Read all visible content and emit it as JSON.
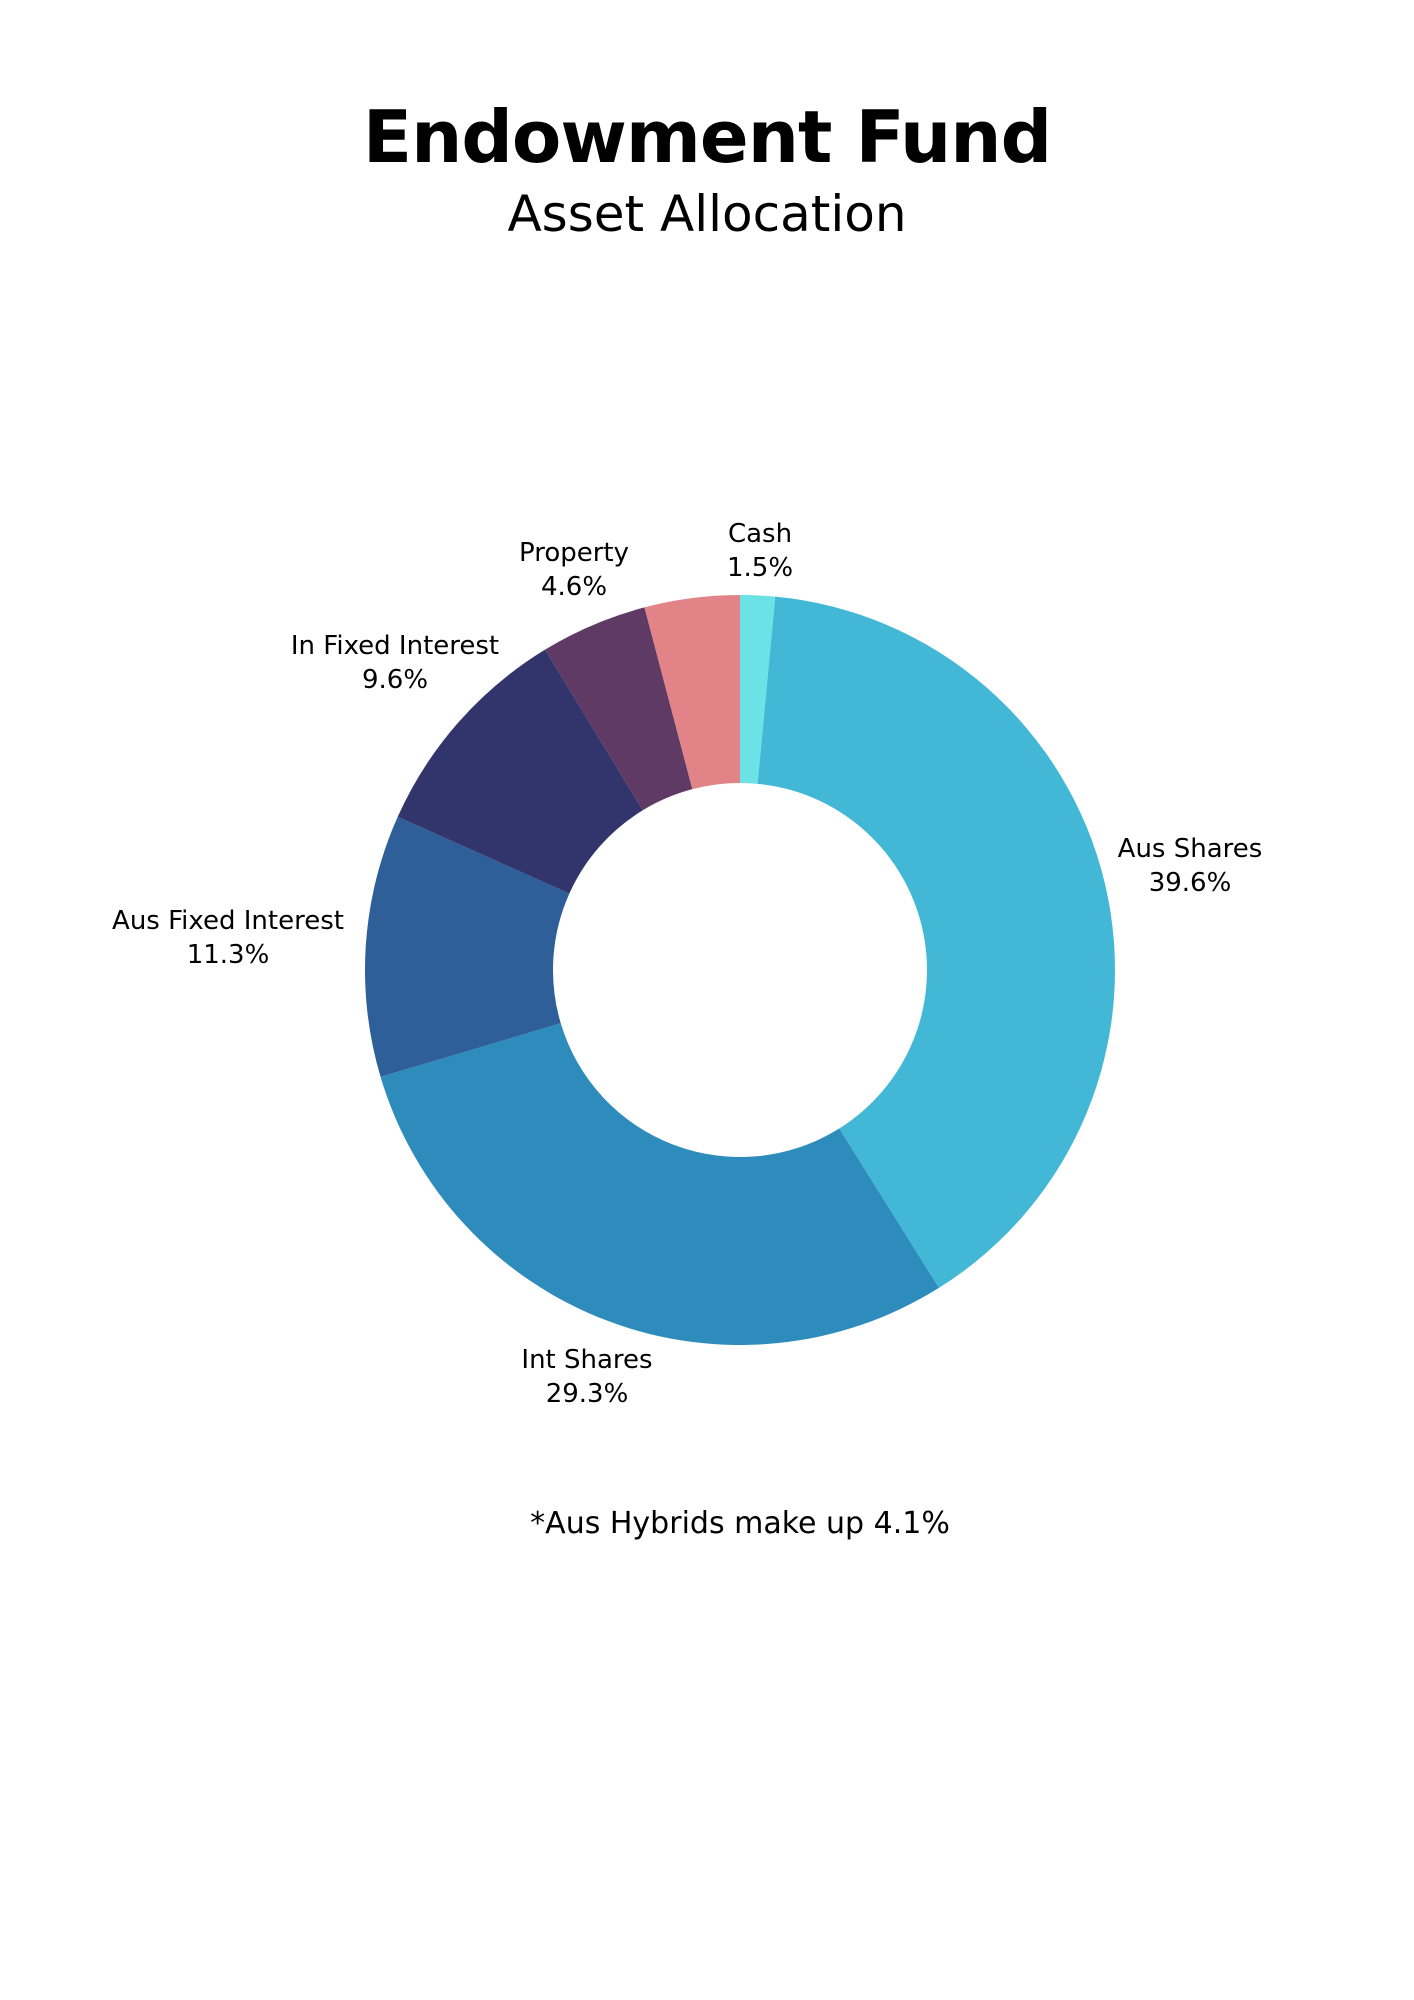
{
  "chart_data": {
    "type": "pie",
    "variant": "donut",
    "title": "Endowment Fund",
    "subtitle": "Asset Allocation",
    "start_angle_deg": 0,
    "direction": "clockwise",
    "slices": [
      {
        "label": "Cash",
        "value": 1.5,
        "value_label": "1.5%",
        "color": "#6AE2E6"
      },
      {
        "label": "Aus Shares",
        "value": 39.6,
        "value_label": "39.6%",
        "color": "#42B7D6"
      },
      {
        "label": "Int Shares",
        "value": 29.3,
        "value_label": "29.3%",
        "color": "#2E8CBC"
      },
      {
        "label": "Aus Fixed Interest",
        "value": 11.3,
        "value_label": "11.3%",
        "color": "#2E5F98"
      },
      {
        "label": "In Fixed Interest",
        "value": 9.6,
        "value_label": "9.6%",
        "color": "#32356C"
      },
      {
        "label": "Property",
        "value": 4.6,
        "value_label": "4.6%",
        "color": "#5E3A64"
      },
      {
        "label": "",
        "value": 4.1,
        "value_label": "",
        "color": "#E28487"
      }
    ],
    "footnote": "*Aus Hybrids make up 4.1%"
  }
}
